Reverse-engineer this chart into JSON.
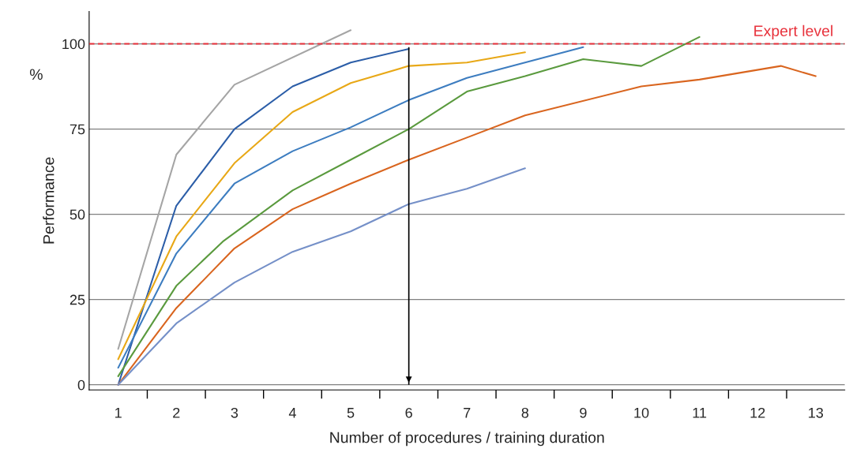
{
  "chart_data": {
    "type": "line",
    "xlabel": "Number of procedures / training duration",
    "ylabel": "Performance",
    "annotations": [
      "%"
    ],
    "xlim": [
      0.5,
      13.5
    ],
    "xticks": [
      1,
      2,
      3,
      4,
      5,
      6,
      7,
      8,
      9,
      10,
      11,
      12,
      13,
      {
        "value": 1.5,
        "label": null
      },
      {
        "value": 2.5,
        "label": null
      },
      {
        "value": 3.5,
        "label": null
      },
      {
        "value": 4.5,
        "label": null
      },
      {
        "value": 5.5,
        "label": null
      },
      {
        "value": 6.5,
        "label": null
      },
      {
        "value": 7.5,
        "label": null
      },
      {
        "value": 8.5,
        "label": null
      },
      {
        "value": 9.5,
        "label": null
      },
      {
        "value": 10.5,
        "label": null
      },
      {
        "value": 11.5,
        "label": null
      },
      {
        "value": 12.5,
        "label": null
      }
    ],
    "ylim": [
      -1.5,
      109.5
    ],
    "yticks": [
      0,
      25,
      50,
      75,
      100
    ],
    "grid": "y",
    "legend": false,
    "marker": "none",
    "line_style": "solid",
    "ref_lines": [
      {
        "axis": "y",
        "value": 100,
        "label": "Expert level",
        "color": "#e8323c",
        "line_style": "dashed"
      },
      {
        "axis": "x",
        "value": 6,
        "color": "#000000",
        "line_style": "solid"
      }
    ],
    "series": [
      {
        "color": "#a5a5a5",
        "x": [
          1,
          2,
          3,
          5
        ],
        "values": [
          10.5,
          67.5,
          88,
          104
        ]
      },
      {
        "color": "#2c5ea8",
        "x": [
          1,
          2,
          3,
          4,
          5,
          6
        ],
        "values": [
          0,
          52.5,
          75,
          87.5,
          94.5,
          98.5
        ]
      },
      {
        "color": "#e8a817",
        "x": [
          1,
          2,
          3,
          4,
          5,
          6,
          7,
          8
        ],
        "values": [
          7.5,
          43.5,
          65,
          80,
          88.5,
          93.5,
          94.5,
          97.5
        ]
      },
      {
        "color": "#3d7dc0",
        "x": [
          1,
          2,
          3,
          4,
          5,
          6,
          7,
          9
        ],
        "values": [
          5,
          38.5,
          59,
          68.5,
          75.5,
          83.5,
          90,
          99
        ]
      },
      {
        "color": "#5a9a3e",
        "x": [
          1,
          2,
          2.8,
          4,
          5,
          6,
          7,
          8,
          9,
          10,
          11
        ],
        "values": [
          2.5,
          29,
          42,
          57,
          66,
          75,
          86,
          90.5,
          95.5,
          93.5,
          102
        ]
      },
      {
        "color": "#d9651f",
        "x": [
          1,
          2,
          3,
          4,
          5,
          6,
          7,
          8,
          10,
          11,
          12.4,
          13
        ],
        "values": [
          0,
          22.5,
          40,
          51.5,
          59,
          66,
          72.5,
          79,
          87.5,
          89.5,
          93.5,
          90.5
        ]
      },
      {
        "color": "#7590c8",
        "x": [
          1,
          2,
          3,
          4,
          5,
          6,
          7,
          8
        ],
        "values": [
          0,
          18,
          30,
          39,
          45,
          53,
          57.5,
          63.5
        ]
      }
    ]
  }
}
